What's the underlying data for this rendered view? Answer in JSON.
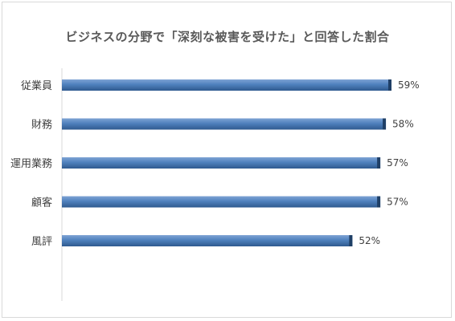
{
  "chart_data": {
    "type": "bar",
    "orientation": "horizontal",
    "title": "ビジネスの分野で「深刻な被害を受けた」と回答した割合",
    "categories": [
      "従業員",
      "財務",
      "運用業務",
      "顧客",
      "風評"
    ],
    "values": [
      59,
      58,
      57,
      57,
      52
    ],
    "value_labels": [
      "59%",
      "58%",
      "57%",
      "57%",
      "52%"
    ],
    "unit": "%",
    "xlim": [
      0,
      60
    ],
    "grid": false,
    "legend": "none",
    "colors": {
      "bar": "#4f81bd",
      "bar_light": "#7ea3d4",
      "bar_dark": "#2f5a8f",
      "bar_end": "#1f3f66"
    }
  }
}
